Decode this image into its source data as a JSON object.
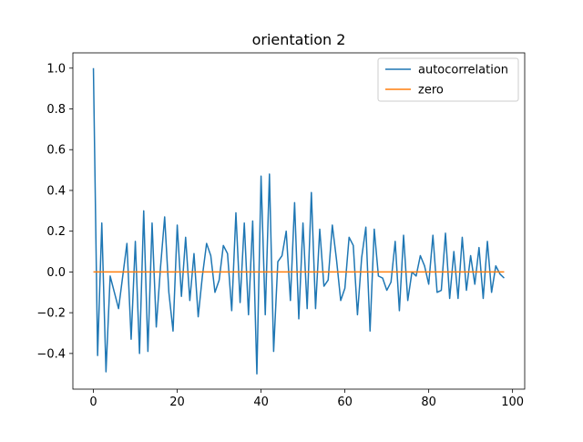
{
  "chart_data": {
    "type": "line",
    "title": "orientation 2",
    "xlabel": "",
    "ylabel": "",
    "xlim": [
      -4.9,
      102.9
    ],
    "ylim": [
      -0.575,
      1.075
    ],
    "xticks": [
      0,
      20,
      40,
      60,
      80,
      100
    ],
    "xtick_labels": [
      "0",
      "20",
      "40",
      "60",
      "80",
      "100"
    ],
    "yticks": [
      -0.4,
      -0.2,
      0.0,
      0.2,
      0.4,
      0.6,
      0.8,
      1.0
    ],
    "ytick_labels": [
      "−0.4",
      "−0.2",
      "0.0",
      "0.2",
      "0.4",
      "0.6",
      "0.8",
      "1.0"
    ],
    "grid": false,
    "legend": "top-right",
    "x": [
      0,
      1,
      2,
      3,
      4,
      5,
      6,
      7,
      8,
      9,
      10,
      11,
      12,
      13,
      14,
      15,
      16,
      17,
      18,
      19,
      20,
      21,
      22,
      23,
      24,
      25,
      26,
      27,
      28,
      29,
      30,
      31,
      32,
      33,
      34,
      35,
      36,
      37,
      38,
      39,
      40,
      41,
      42,
      43,
      44,
      45,
      46,
      47,
      48,
      49,
      50,
      51,
      52,
      53,
      54,
      55,
      56,
      57,
      58,
      59,
      60,
      61,
      62,
      63,
      64,
      65,
      66,
      67,
      68,
      69,
      70,
      71,
      72,
      73,
      74,
      75,
      76,
      77,
      78,
      79,
      80,
      81,
      82,
      83,
      84,
      85,
      86,
      87,
      88,
      89,
      90,
      91,
      92,
      93,
      94,
      95,
      96,
      97,
      98
    ],
    "series": [
      {
        "name": "autocorrelation",
        "color": "#1f77b4",
        "values": [
          1.0,
          -0.41,
          0.24,
          -0.49,
          -0.02,
          -0.1,
          -0.18,
          -0.02,
          0.14,
          -0.33,
          0.15,
          -0.4,
          0.3,
          -0.39,
          0.24,
          -0.27,
          0.02,
          0.27,
          -0.1,
          -0.29,
          0.23,
          -0.12,
          0.17,
          -0.14,
          0.09,
          -0.22,
          -0.02,
          0.14,
          0.08,
          -0.1,
          -0.04,
          0.13,
          0.09,
          -0.19,
          0.29,
          -0.15,
          0.24,
          -0.21,
          0.25,
          -0.5,
          0.47,
          -0.21,
          0.48,
          -0.39,
          0.05,
          0.08,
          0.2,
          -0.14,
          0.34,
          -0.23,
          0.24,
          -0.18,
          0.39,
          -0.18,
          0.21,
          -0.07,
          -0.04,
          0.23,
          0.06,
          -0.14,
          -0.08,
          0.17,
          0.13,
          -0.21,
          0.07,
          0.22,
          -0.29,
          0.21,
          -0.02,
          -0.03,
          -0.09,
          -0.05,
          0.15,
          -0.19,
          0.18,
          -0.14,
          0.0,
          -0.02,
          0.08,
          0.03,
          -0.06,
          0.18,
          -0.1,
          -0.09,
          0.19,
          -0.13,
          0.1,
          -0.13,
          0.17,
          -0.09,
          0.08,
          -0.06,
          0.12,
          -0.13,
          0.15,
          -0.1,
          0.03,
          -0.01,
          -0.03
        ]
      },
      {
        "name": "zero",
        "color": "#ff7f0e",
        "values": [
          0,
          0,
          0,
          0,
          0,
          0,
          0,
          0,
          0,
          0,
          0,
          0,
          0,
          0,
          0,
          0,
          0,
          0,
          0,
          0,
          0,
          0,
          0,
          0,
          0,
          0,
          0,
          0,
          0,
          0,
          0,
          0,
          0,
          0,
          0,
          0,
          0,
          0,
          0,
          0,
          0,
          0,
          0,
          0,
          0,
          0,
          0,
          0,
          0,
          0,
          0,
          0,
          0,
          0,
          0,
          0,
          0,
          0,
          0,
          0,
          0,
          0,
          0,
          0,
          0,
          0,
          0,
          0,
          0,
          0,
          0,
          0,
          0,
          0,
          0,
          0,
          0,
          0,
          0,
          0,
          0,
          0,
          0,
          0,
          0,
          0,
          0,
          0,
          0,
          0,
          0,
          0,
          0,
          0,
          0,
          0,
          0,
          0,
          0
        ]
      }
    ]
  }
}
